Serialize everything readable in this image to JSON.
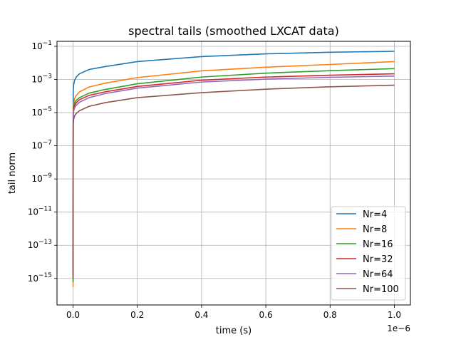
{
  "chart_data": {
    "type": "line",
    "title": "spectral tails (smoothed LXCAT data)",
    "xlabel": "time (s)",
    "ylabel": "tail norm",
    "x_offset_label": "1e−6",
    "x_scale_factor": 1e-06,
    "xlim": [
      -5e-08,
      1.05e-06
    ],
    "ylim_log10": [
      -16.6,
      -0.7
    ],
    "y_scale": "log",
    "grid": true,
    "legend_position": "lower-right",
    "x_ticks": [
      {
        "value": 0,
        "label": "0.0"
      },
      {
        "value": 2e-07,
        "label": "0.2"
      },
      {
        "value": 4e-07,
        "label": "0.4"
      },
      {
        "value": 6e-07,
        "label": "0.6"
      },
      {
        "value": 8e-07,
        "label": "0.8"
      },
      {
        "value": 1e-06,
        "label": "1.0"
      }
    ],
    "y_ticks": [
      {
        "exp": -1,
        "base": "10",
        "sup": "−1"
      },
      {
        "exp": -3,
        "base": "10",
        "sup": "−3"
      },
      {
        "exp": -5,
        "base": "10",
        "sup": "−5"
      },
      {
        "exp": -7,
        "base": "10",
        "sup": "−7"
      },
      {
        "exp": -9,
        "base": "10",
        "sup": "−9"
      },
      {
        "exp": -11,
        "base": "10",
        "sup": "−11"
      },
      {
        "exp": -13,
        "base": "10",
        "sup": "−13"
      },
      {
        "exp": -15,
        "base": "10",
        "sup": "−15"
      }
    ],
    "series": [
      {
        "name": "Nr=4",
        "color": "#1f77b4",
        "x": [
          0,
          5e-10,
          2e-09,
          5e-09,
          1e-08,
          2e-08,
          5e-08,
          1e-07,
          2e-07,
          4e-07,
          6e-07,
          8e-07,
          1e-06
        ],
        "y": [
          5e-15,
          0.0002,
          0.0005,
          0.0009,
          0.0014,
          0.0022,
          0.004,
          0.006,
          0.012,
          0.024,
          0.035,
          0.044,
          0.05
        ]
      },
      {
        "name": "Nr=8",
        "color": "#ff7f0e",
        "x": [
          0,
          5e-10,
          2e-09,
          5e-09,
          1e-08,
          2e-08,
          5e-08,
          1e-07,
          2e-07,
          4e-07,
          6e-07,
          8e-07,
          1e-06
        ],
        "y": [
          3e-16,
          1.5e-05,
          4e-05,
          7e-05,
          0.00011,
          0.00018,
          0.00035,
          0.0006,
          0.0013,
          0.0033,
          0.0055,
          0.008,
          0.012
        ]
      },
      {
        "name": "Nr=16",
        "color": "#2ca02c",
        "x": [
          0,
          5e-10,
          2e-09,
          5e-09,
          1e-08,
          2e-08,
          5e-08,
          1e-07,
          2e-07,
          4e-07,
          6e-07,
          8e-07,
          1e-06
        ],
        "y": [
          6e-16,
          1e-05,
          2.5e-05,
          4e-05,
          5.5e-05,
          8e-05,
          0.00015,
          0.00025,
          0.00055,
          0.0014,
          0.0024,
          0.0034,
          0.0045
        ]
      },
      {
        "name": "Nr=32",
        "color": "#d62728",
        "x": [
          0,
          5e-10,
          2e-09,
          5e-09,
          1e-08,
          2e-08,
          5e-08,
          1e-07,
          2e-07,
          4e-07,
          6e-07,
          8e-07,
          1e-06
        ],
        "y": [
          1.5e-15,
          8e-06,
          1.8e-05,
          2.8e-05,
          4e-05,
          6e-05,
          0.00011,
          0.00018,
          0.00038,
          0.0009,
          0.0014,
          0.0018,
          0.0022
        ]
      },
      {
        "name": "Nr=64",
        "color": "#9467bd",
        "x": [
          0,
          5e-10,
          2e-09,
          5e-09,
          1e-08,
          2e-08,
          5e-08,
          1e-07,
          2e-07,
          4e-07,
          6e-07,
          8e-07,
          1e-06
        ],
        "y": [
          1e-15,
          6e-06,
          1.3e-05,
          2e-05,
          2.8e-05,
          4.2e-05,
          8e-05,
          0.00014,
          0.0003,
          0.0007,
          0.00105,
          0.00135,
          0.0016
        ]
      },
      {
        "name": "Nr=100",
        "color": "#8c564b",
        "x": [
          0,
          5e-10,
          2e-09,
          5e-09,
          1e-08,
          2e-08,
          5e-08,
          1e-07,
          2e-07,
          4e-07,
          6e-07,
          8e-07,
          1e-06
        ],
        "y": [
          1e-15,
          2e-06,
          4e-06,
          6.5e-06,
          9e-06,
          1.3e-05,
          2.4e-05,
          4e-05,
          8e-05,
          0.00016,
          0.00026,
          0.00036,
          0.00045
        ]
      }
    ]
  }
}
